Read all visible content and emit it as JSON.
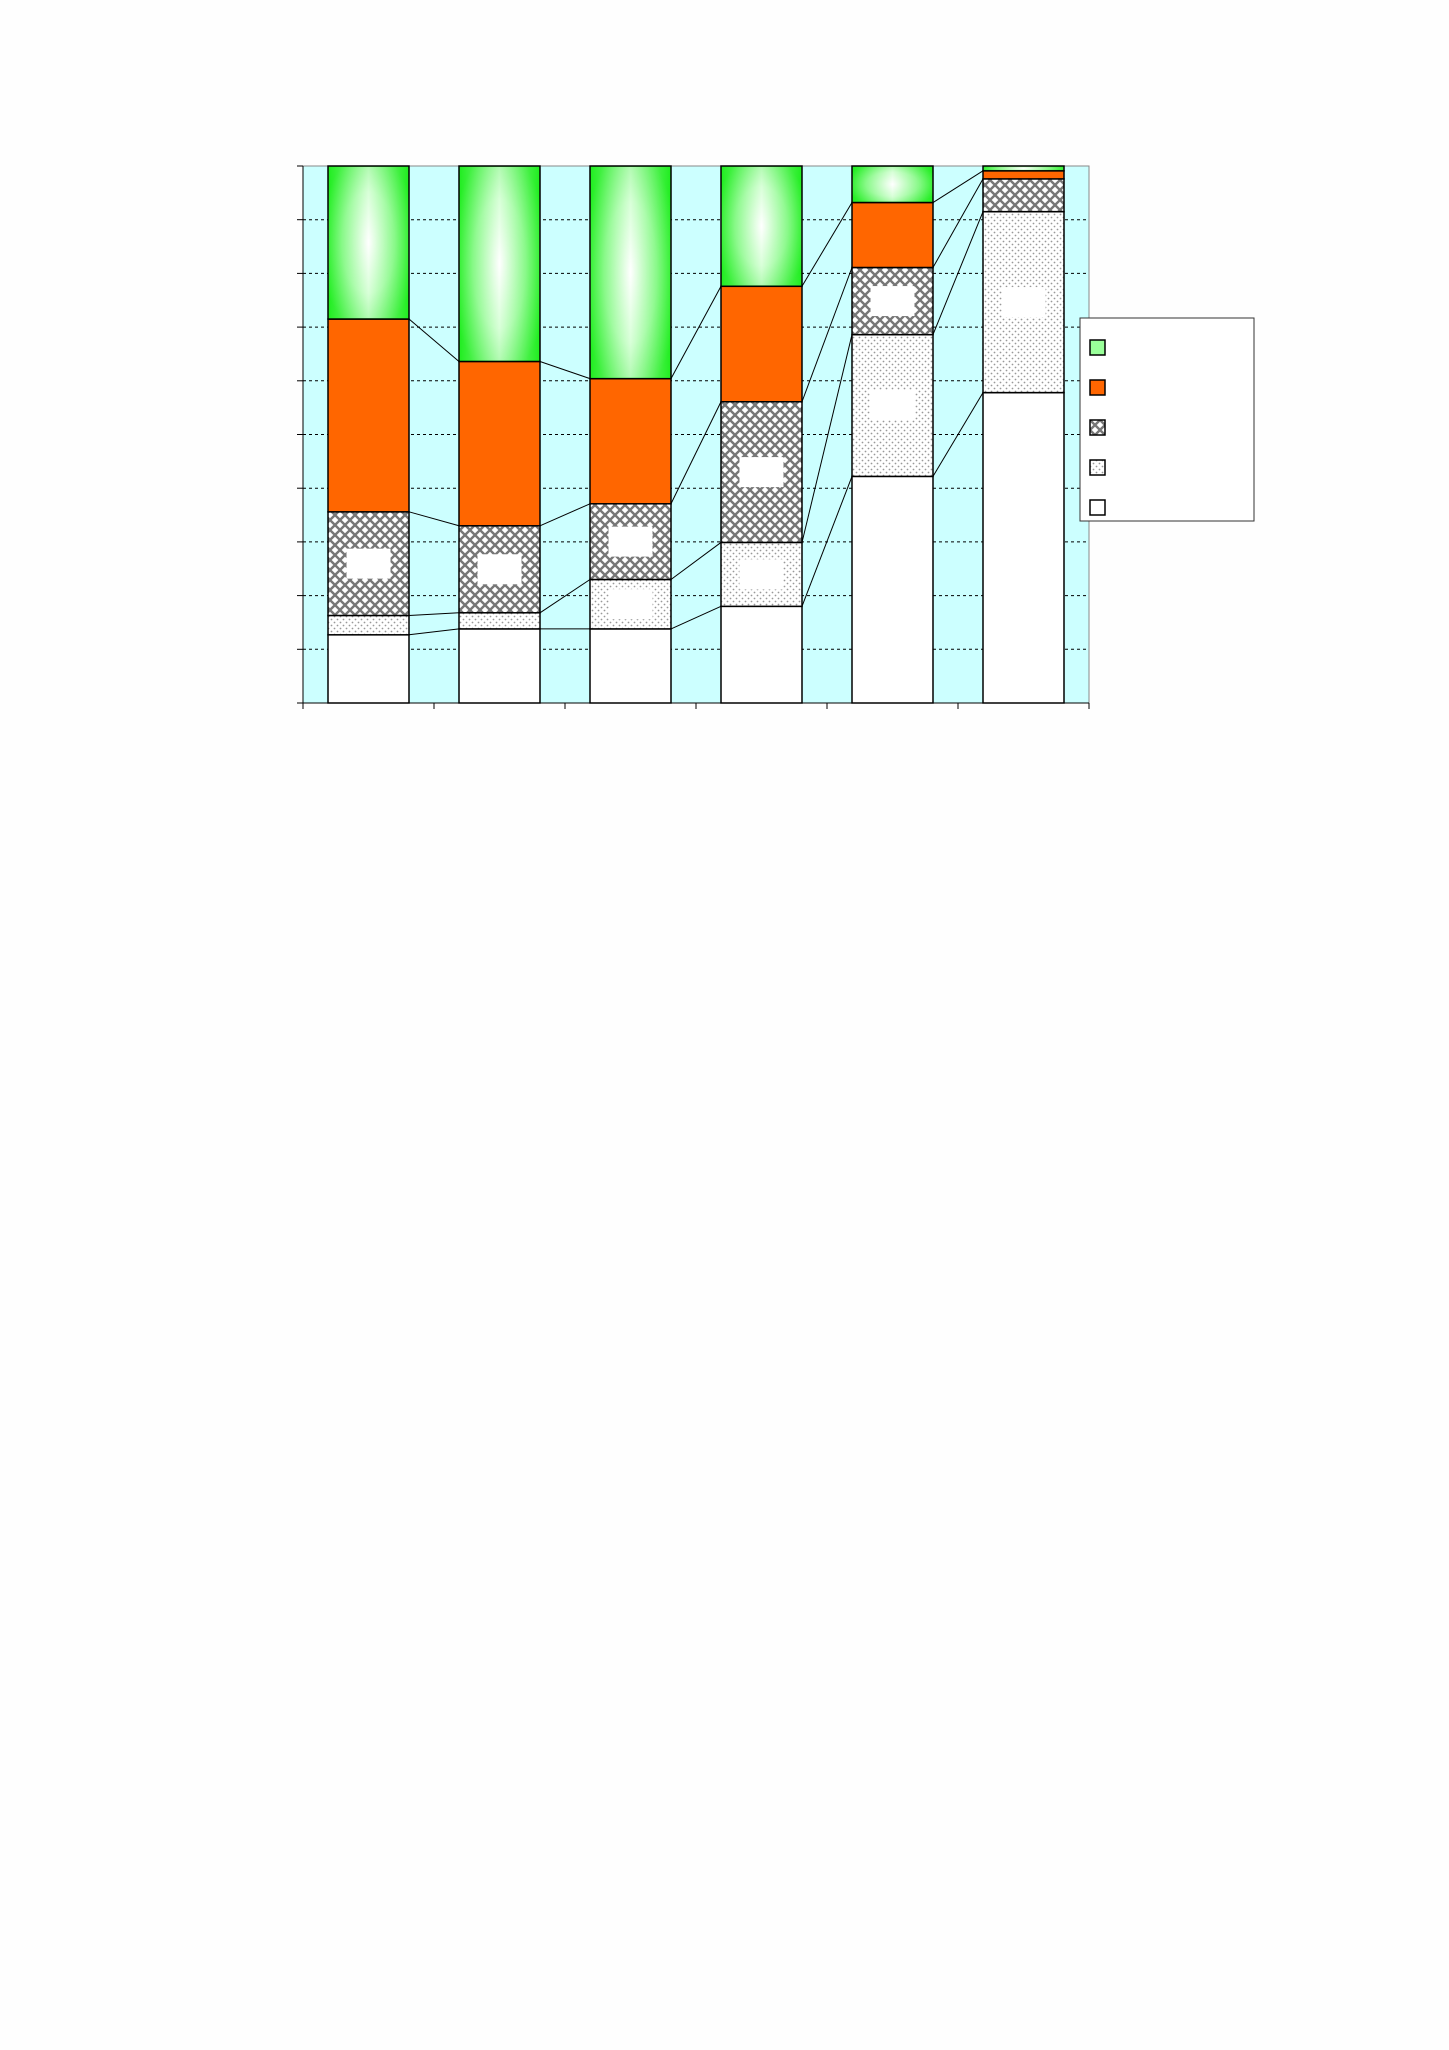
{
  "chart_data": {
    "type": "bar",
    "stacked": true,
    "percent_stacked": true,
    "categories": [
      "",
      "",
      "",
      "",
      "",
      ""
    ],
    "series": [
      {
        "values": [
          12.7,
          13.8,
          13.8,
          18.0,
          42.2,
          57.8
        ],
        "color": "#ffffff",
        "pattern": "solid-white"
      },
      {
        "values": [
          3.6,
          3.0,
          9.2,
          11.9,
          26.4,
          33.7
        ],
        "color": "#ffffff",
        "pattern": "dots"
      },
      {
        "values": [
          19.3,
          16.2,
          14.1,
          26.2,
          12.5,
          6.1
        ],
        "color": "#ffffff",
        "pattern": "crosshatch"
      },
      {
        "values": [
          35.9,
          30.6,
          23.3,
          21.5,
          12.1,
          1.5
        ],
        "color": "#ff6600",
        "pattern": "solid-orange"
      },
      {
        "values": [
          28.5,
          36.4,
          39.6,
          22.4,
          6.8,
          0.9
        ],
        "color": "#33ff33",
        "pattern": "green-gradient"
      }
    ],
    "ylim": [
      0,
      100
    ],
    "y_gridline_step": 10,
    "grid": true,
    "plot_background": "#ccffff",
    "series_lines": true,
    "legend_position": "right",
    "title": "",
    "xlabel": "",
    "ylabel": ""
  }
}
